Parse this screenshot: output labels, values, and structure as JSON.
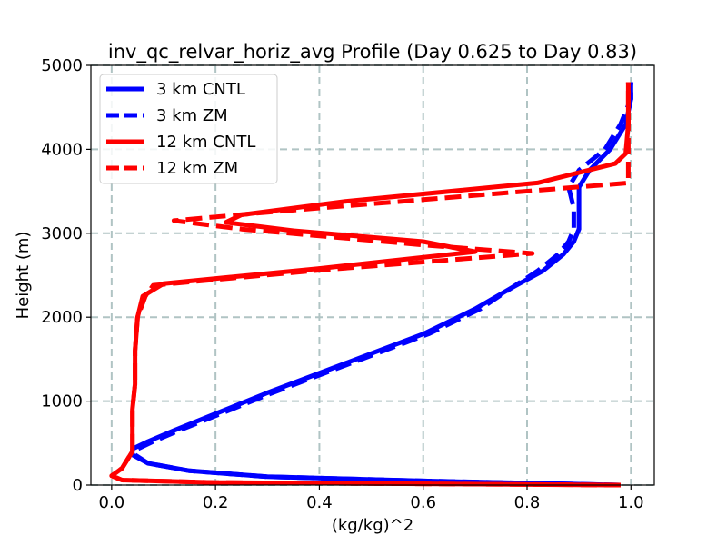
{
  "chart_data": {
    "type": "line",
    "title": "inv_qc_relvar_horiz_avg Profile (Day 0.625 to Day 0.83)",
    "xlabel": "(kg/kg)^2",
    "ylabel": "Height (m)",
    "xlim": [
      -0.04,
      1.045
    ],
    "ylim": [
      0,
      5000
    ],
    "xticks": [
      0.0,
      0.2,
      0.4,
      0.6,
      0.8,
      1.0
    ],
    "xtick_labels": [
      "0.0",
      "0.2",
      "0.4",
      "0.6",
      "0.8",
      "1.0"
    ],
    "yticks": [
      0,
      1000,
      2000,
      3000,
      4000,
      5000
    ],
    "ytick_labels": [
      "0",
      "1000",
      "2000",
      "3000",
      "4000",
      "5000"
    ],
    "grid": true,
    "legend_position": "upper-left",
    "series": [
      {
        "name": "3 km CNTL",
        "color": "#0000ff",
        "dash": "solid",
        "points": [
          [
            0.98,
            0
          ],
          [
            0.6,
            50
          ],
          [
            0.3,
            100
          ],
          [
            0.15,
            170
          ],
          [
            0.07,
            260
          ],
          [
            0.04,
            360
          ],
          [
            0.04,
            430
          ],
          [
            0.07,
            520
          ],
          [
            0.12,
            650
          ],
          [
            0.2,
            850
          ],
          [
            0.3,
            1100
          ],
          [
            0.45,
            1450
          ],
          [
            0.6,
            1800
          ],
          [
            0.7,
            2100
          ],
          [
            0.77,
            2350
          ],
          [
            0.83,
            2550
          ],
          [
            0.87,
            2750
          ],
          [
            0.89,
            2900
          ],
          [
            0.9,
            3050
          ],
          [
            0.9,
            3300
          ],
          [
            0.9,
            3550
          ],
          [
            0.92,
            3750
          ],
          [
            0.96,
            4000
          ],
          [
            0.99,
            4300
          ],
          [
            1.0,
            4600
          ],
          [
            1.0,
            4800
          ]
        ]
      },
      {
        "name": "3 km ZM",
        "color": "#0000ff",
        "dash": "dashed",
        "points": [
          [
            0.98,
            0
          ],
          [
            0.6,
            50
          ],
          [
            0.3,
            100
          ],
          [
            0.15,
            170
          ],
          [
            0.07,
            260
          ],
          [
            0.045,
            360
          ],
          [
            0.05,
            430
          ],
          [
            0.08,
            520
          ],
          [
            0.13,
            650
          ],
          [
            0.21,
            850
          ],
          [
            0.31,
            1100
          ],
          [
            0.46,
            1450
          ],
          [
            0.61,
            1800
          ],
          [
            0.71,
            2100
          ],
          [
            0.77,
            2350
          ],
          [
            0.82,
            2550
          ],
          [
            0.86,
            2750
          ],
          [
            0.88,
            2900
          ],
          [
            0.89,
            3050
          ],
          [
            0.89,
            3300
          ],
          [
            0.88,
            3550
          ],
          [
            0.9,
            3750
          ],
          [
            0.95,
            4000
          ],
          [
            0.98,
            4300
          ],
          [
            1.0,
            4600
          ],
          [
            1.0,
            4800
          ]
        ]
      },
      {
        "name": "12 km CNTL",
        "color": "#ff0000",
        "dash": "solid",
        "points": [
          [
            0.98,
            0
          ],
          [
            0.2,
            30
          ],
          [
            0.02,
            60
          ],
          [
            0.0,
            110
          ],
          [
            0.02,
            200
          ],
          [
            0.04,
            400
          ],
          [
            0.04,
            600
          ],
          [
            0.04,
            900
          ],
          [
            0.045,
            1200
          ],
          [
            0.045,
            1600
          ],
          [
            0.05,
            2000
          ],
          [
            0.06,
            2250
          ],
          [
            0.1,
            2400
          ],
          [
            0.4,
            2580
          ],
          [
            0.7,
            2780
          ],
          [
            0.6,
            2900
          ],
          [
            0.35,
            3030
          ],
          [
            0.22,
            3130
          ],
          [
            0.25,
            3220
          ],
          [
            0.45,
            3380
          ],
          [
            0.82,
            3600
          ],
          [
            0.97,
            3830
          ],
          [
            0.99,
            3950
          ],
          [
            0.995,
            4300
          ],
          [
            0.995,
            4800
          ]
        ]
      },
      {
        "name": "12 km ZM",
        "color": "#ff0000",
        "dash": "dashed",
        "points": [
          [
            0.98,
            0
          ],
          [
            0.2,
            30
          ],
          [
            0.02,
            60
          ],
          [
            0.0,
            110
          ],
          [
            0.02,
            200
          ],
          [
            0.04,
            400
          ],
          [
            0.04,
            600
          ],
          [
            0.04,
            900
          ],
          [
            0.045,
            1200
          ],
          [
            0.045,
            1600
          ],
          [
            0.05,
            2000
          ],
          [
            0.065,
            2250
          ],
          [
            0.08,
            2380
          ],
          [
            0.4,
            2560
          ],
          [
            0.81,
            2760
          ],
          [
            0.6,
            2860
          ],
          [
            0.25,
            3050
          ],
          [
            0.12,
            3150
          ],
          [
            0.3,
            3250
          ],
          [
            0.6,
            3400
          ],
          [
            0.995,
            3600
          ],
          [
            0.995,
            4000
          ],
          [
            0.995,
            4800
          ]
        ]
      }
    ]
  }
}
